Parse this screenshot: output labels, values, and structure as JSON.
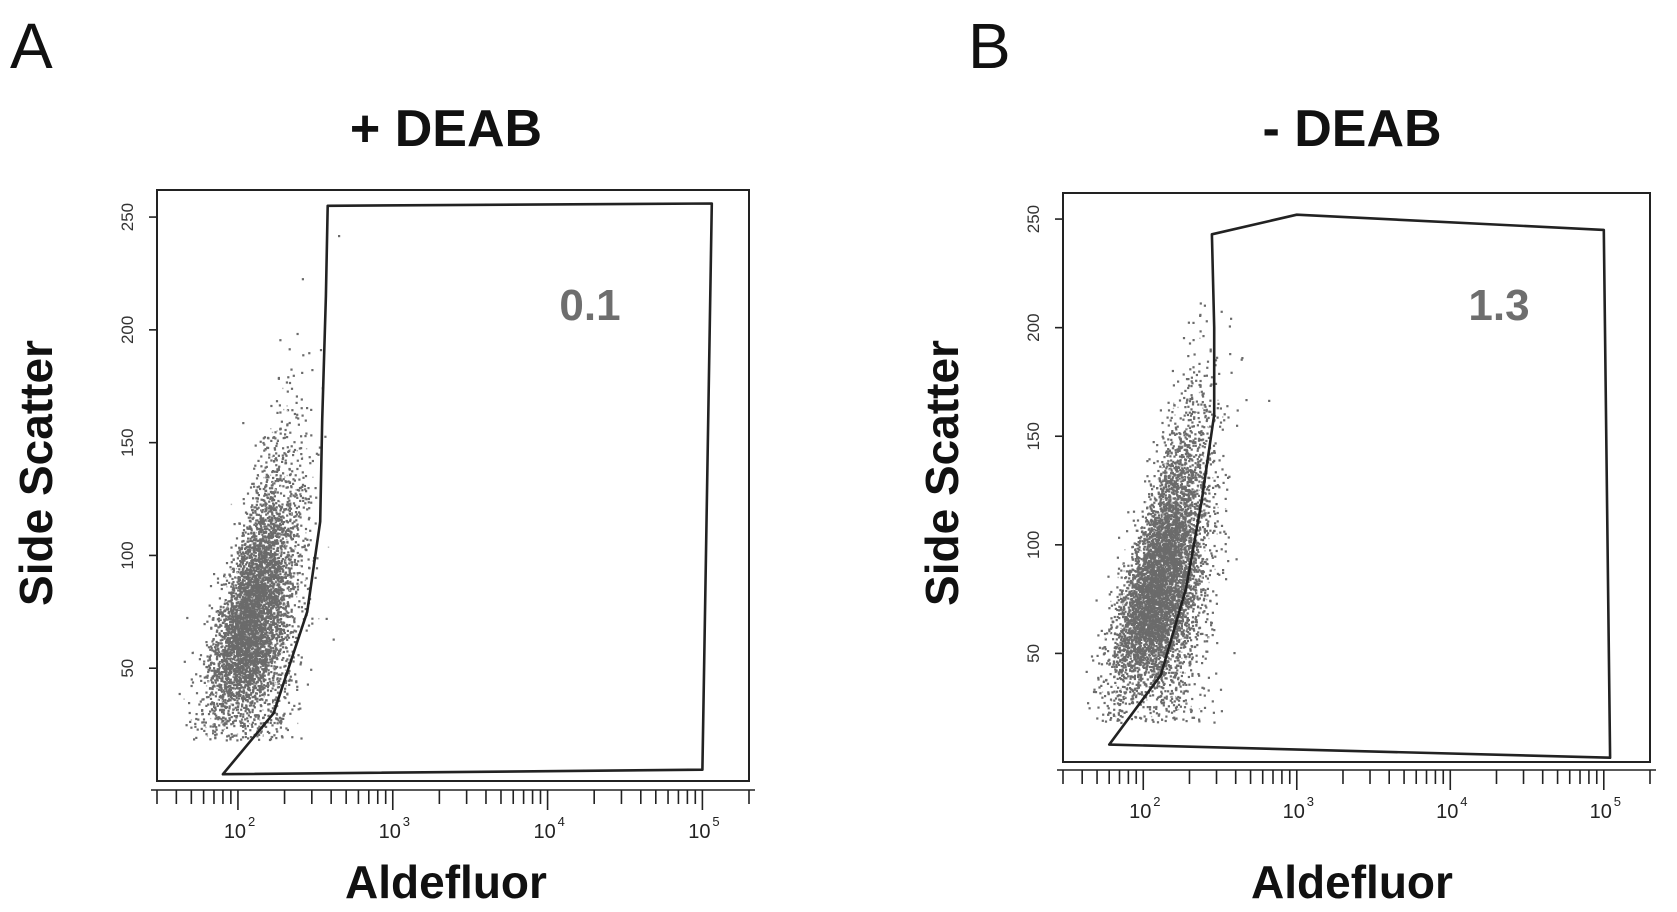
{
  "chart_data": [
    {
      "type": "scatter",
      "panel_label": "A",
      "title": "+ DEAB",
      "xlabel": "Aldefluor",
      "ylabel": "Side Scatter",
      "x_scale": "log",
      "xlim": [
        30,
        200000
      ],
      "ylim": [
        0,
        262
      ],
      "xticks": [
        {
          "value": 100,
          "base": "10",
          "exp": "2"
        },
        {
          "value": 1000,
          "base": "10",
          "exp": "3"
        },
        {
          "value": 10000,
          "base": "10",
          "exp": "4"
        },
        {
          "value": 100000,
          "base": "10",
          "exp": "5"
        }
      ],
      "yticks": [
        {
          "value": 50,
          "label": "50"
        },
        {
          "value": 100,
          "label": "100"
        },
        {
          "value": 150,
          "label": "150"
        },
        {
          "value": 200,
          "label": "200"
        },
        {
          "value": 250,
          "label": "250"
        }
      ],
      "gate_percent": "0.1",
      "gate": [
        [
          380,
          255
        ],
        [
          115000,
          256
        ],
        [
          100000,
          5
        ],
        [
          80,
          3
        ],
        [
          170,
          30
        ],
        [
          280,
          75
        ],
        [
          340,
          115
        ],
        [
          350,
          160
        ],
        [
          370,
          215
        ]
      ],
      "population": {
        "n": 5500,
        "center_x": 130,
        "center_y": 75,
        "log_sd_x": 0.14,
        "sd_y": 30,
        "slope": 105,
        "color": "#6b6b6b"
      },
      "grid": false
    },
    {
      "type": "scatter",
      "panel_label": "B",
      "title": "- DEAB",
      "xlabel": "Aldefluor",
      "ylabel": "Side Scatter",
      "x_scale": "log",
      "xlim": [
        30,
        200000
      ],
      "ylim": [
        0,
        262
      ],
      "xticks": [
        {
          "value": 100,
          "base": "10",
          "exp": "2"
        },
        {
          "value": 1000,
          "base": "10",
          "exp": "3"
        },
        {
          "value": 10000,
          "base": "10",
          "exp": "4"
        },
        {
          "value": 100000,
          "base": "10",
          "exp": "5"
        }
      ],
      "yticks": [
        {
          "value": 50,
          "label": "50"
        },
        {
          "value": 100,
          "label": "100"
        },
        {
          "value": 150,
          "label": "150"
        },
        {
          "value": 200,
          "label": "200"
        },
        {
          "value": 250,
          "label": "250"
        }
      ],
      "gate_percent": "1.3",
      "gate": [
        [
          280,
          243
        ],
        [
          1000,
          252
        ],
        [
          100000,
          245
        ],
        [
          110000,
          2
        ],
        [
          60,
          8
        ],
        [
          130,
          40
        ],
        [
          190,
          80
        ],
        [
          240,
          120
        ],
        [
          290,
          160
        ],
        [
          290,
          200
        ]
      ],
      "population": {
        "n": 6500,
        "center_x": 135,
        "center_y": 85,
        "log_sd_x": 0.15,
        "sd_y": 33,
        "slope": 115,
        "color": "#6b6b6b"
      },
      "grid": false
    }
  ]
}
